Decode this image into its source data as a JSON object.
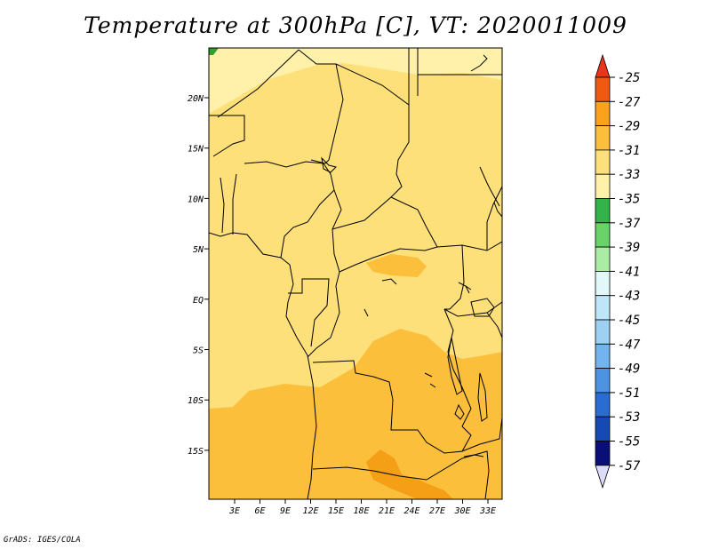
{
  "title": "Temperature at 300hPa [C], VT: 2020011009",
  "credit": "GrADS: IGES/COLA",
  "map": {
    "variable": "Temperature",
    "level": "300hPa",
    "unit": "C",
    "valid_time": "2020011009",
    "lat_labels": [
      "20N",
      "15N",
      "10N",
      "5N",
      "EQ",
      "5S",
      "10S",
      "15S"
    ],
    "lon_labels": [
      "3E",
      "6E",
      "9E",
      "12E",
      "15E",
      "18E",
      "21E",
      "24E",
      "27E",
      "30E",
      "33E"
    ],
    "dominant_band": "-33 to -31",
    "colors": {
      "band_31_33": "#fde07a",
      "band_29_31": "#fbbf3c",
      "band_27_29": "#f59f16",
      "band_33_35": "#fff0aa",
      "green_patch": "#33a02c"
    }
  },
  "colorbar": {
    "labels": [
      "-25",
      "-27",
      "-29",
      "-31",
      "-33",
      "-35",
      "-37",
      "-39",
      "-41",
      "-43",
      "-45",
      "-47",
      "-49",
      "-51",
      "-53",
      "-55",
      "-57"
    ],
    "colors": [
      "#f05a10",
      "#fb8a0c",
      "#fba21c",
      "#fbbf3c",
      "#fde07a",
      "#fff0aa",
      "#33b44a",
      "#69d36a",
      "#aaeba5",
      "#e2f8f8",
      "#bfe6f8",
      "#9dd0f3",
      "#74b4ee",
      "#4d92e3",
      "#2a6cd4",
      "#1649b4",
      "#0a0e78"
    ],
    "top_arrow_color": "#e8361a",
    "bottom_arrow_color": "#dcdcf8"
  }
}
